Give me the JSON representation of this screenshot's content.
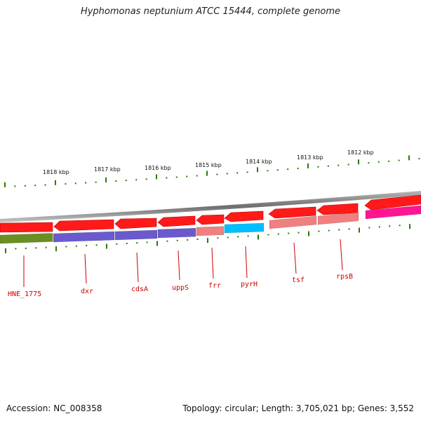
{
  "title": "Hyphomonas neptunium ATCC 15444, complete genome",
  "footer": {
    "accession": "Accession: NC_008358",
    "summary": "Topology: circular; Length: 3,705,021 bp; Genes: 3,552"
  },
  "colors": {
    "forward_gene": "#ff1a1a",
    "ruler_tick": "#2a7a00",
    "backbone": "#8a8a8a",
    "label": "#cc0000"
  },
  "ruler_labels": [
    "1818 kbp",
    "1817 kbp",
    "1816 kbp",
    "1815 kbp",
    "1814 kbp",
    "1813 kbp",
    "1812 kbp"
  ],
  "genes": [
    {
      "name": "HNE_1775",
      "cog_color": "#6b8e23"
    },
    {
      "name": "dxr",
      "cog_color": "#6a5acd"
    },
    {
      "name": "cdsA",
      "cog_color": "#6a5acd"
    },
    {
      "name": "uppS",
      "cog_color": "#6a5acd"
    },
    {
      "name": "frr",
      "cog_color": "#f08080"
    },
    {
      "name": "pyrH",
      "cog_color": "#00bfff"
    },
    {
      "name": "tsf",
      "cog_color": "#f08080"
    },
    {
      "name": "rpsB",
      "cog_color": "#f08080"
    },
    {
      "name": "",
      "cog_color": "#ff1493"
    }
  ]
}
